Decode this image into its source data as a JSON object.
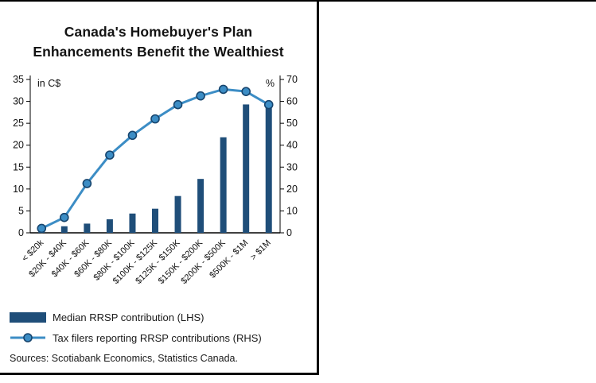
{
  "chart_data": {
    "type": "bar",
    "subtype": "combo-bar-line-dual-axis",
    "title_lines": [
      "Canada's Homebuyer's Plan",
      "Enhancements Benefit the Wealthiest"
    ],
    "left_axis": {
      "label": "in C$",
      "min": 0,
      "max": 35,
      "ticks": [
        0,
        5,
        10,
        15,
        20,
        25,
        30,
        35
      ]
    },
    "right_axis": {
      "label": "%",
      "min": 0,
      "max": 70,
      "ticks": [
        0,
        10,
        20,
        30,
        40,
        50,
        60,
        70
      ]
    },
    "categories": [
      "< $20k",
      "$20K - $40K",
      "$40K - $60K",
      "$60K - $80K",
      "$80K - $100K",
      "$100K - $125K",
      "$125K - $150K",
      "$150K - $200K",
      "$200K - $500K",
      "$500K - $1M",
      "> $1M"
    ],
    "series": [
      {
        "name": "Median RRSP contribution (LHS)",
        "type": "bar",
        "axis": "left",
        "color": "#1f4e79",
        "values": [
          0.6,
          1.5,
          2.1,
          3.1,
          4.4,
          5.5,
          8.4,
          12.3,
          21.8,
          29.3,
          29.3
        ]
      },
      {
        "name": "Tax filers reporting RRSP contributions (RHS)",
        "type": "line",
        "axis": "right",
        "color": "#3c8dc5",
        "marker_edge": "#17456e",
        "values": [
          2,
          7,
          22.5,
          35.5,
          44.5,
          52,
          58.5,
          62.5,
          65.5,
          64.5,
          58.5
        ]
      }
    ],
    "grid": false,
    "legend_position": "bottom-left",
    "source": "Sources: Scotiabank Economics, Statistics Canada."
  }
}
